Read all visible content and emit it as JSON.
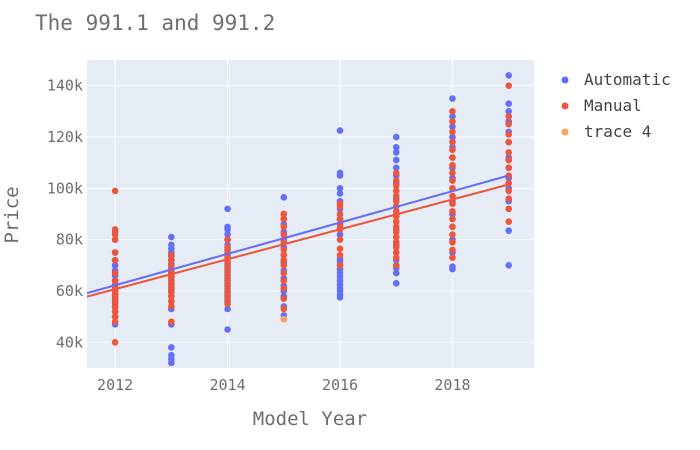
{
  "chart_data": {
    "type": "scatter",
    "title": "The 991.1 and 991.2",
    "xlabel": "Model Year",
    "ylabel": "Price",
    "xlim": [
      2011.5,
      2019.45
    ],
    "ylim": [
      30000,
      150000
    ],
    "x_ticks": [
      2012,
      2014,
      2016,
      2018
    ],
    "x_tick_labels": [
      "2012",
      "2014",
      "2016",
      "2018"
    ],
    "y_ticks": [
      40000,
      60000,
      80000,
      100000,
      120000,
      140000
    ],
    "y_tick_labels": [
      "40k",
      "60k",
      "80k",
      "100k",
      "120k",
      "140k"
    ],
    "grid": true,
    "legend_position": "top-right",
    "series": [
      {
        "name": "Automatic",
        "color": "#636efa",
        "mode": "markers",
        "points": [
          [
            2012,
            47000
          ],
          [
            2012,
            50000
          ],
          [
            2012,
            52000
          ],
          [
            2012,
            54000
          ],
          [
            2012,
            55500
          ],
          [
            2012,
            57000
          ],
          [
            2012,
            58500
          ],
          [
            2012,
            60000
          ],
          [
            2012,
            61000
          ],
          [
            2012,
            62500
          ],
          [
            2012,
            64000
          ],
          [
            2012,
            66000
          ],
          [
            2012,
            68000
          ],
          [
            2012,
            70000
          ],
          [
            2012,
            72000
          ],
          [
            2012,
            75000
          ],
          [
            2012,
            80000
          ],
          [
            2012,
            83000
          ],
          [
            2013,
            32000
          ],
          [
            2013,
            33500
          ],
          [
            2013,
            35000
          ],
          [
            2013,
            38000
          ],
          [
            2013,
            47000
          ],
          [
            2013,
            53000
          ],
          [
            2013,
            56000
          ],
          [
            2013,
            58000
          ],
          [
            2013,
            60000
          ],
          [
            2013,
            61500
          ],
          [
            2013,
            63000
          ],
          [
            2013,
            64500
          ],
          [
            2013,
            66000
          ],
          [
            2013,
            67500
          ],
          [
            2013,
            69000
          ],
          [
            2013,
            70500
          ],
          [
            2013,
            72000
          ],
          [
            2013,
            73500
          ],
          [
            2013,
            75000
          ],
          [
            2013,
            76500
          ],
          [
            2013,
            78000
          ],
          [
            2013,
            81000
          ],
          [
            2014,
            45000
          ],
          [
            2014,
            53000
          ],
          [
            2014,
            56000
          ],
          [
            2014,
            58000
          ],
          [
            2014,
            60000
          ],
          [
            2014,
            62000
          ],
          [
            2014,
            64000
          ],
          [
            2014,
            66000
          ],
          [
            2014,
            68000
          ],
          [
            2014,
            70000
          ],
          [
            2014,
            72000
          ],
          [
            2014,
            74000
          ],
          [
            2014,
            76000
          ],
          [
            2014,
            78000
          ],
          [
            2014,
            80000
          ],
          [
            2014,
            82000
          ],
          [
            2014,
            84000
          ],
          [
            2014,
            85000
          ],
          [
            2014,
            92000
          ],
          [
            2015,
            50500
          ],
          [
            2015,
            54000
          ],
          [
            2015,
            58000
          ],
          [
            2015,
            60000
          ],
          [
            2015,
            62000
          ],
          [
            2015,
            65000
          ],
          [
            2015,
            68000
          ],
          [
            2015,
            71000
          ],
          [
            2015,
            74000
          ],
          [
            2015,
            77000
          ],
          [
            2015,
            80000
          ],
          [
            2015,
            83000
          ],
          [
            2015,
            86000
          ],
          [
            2015,
            88000
          ],
          [
            2015,
            90000
          ],
          [
            2015,
            96500
          ],
          [
            2016,
            57500
          ],
          [
            2016,
            58500
          ],
          [
            2016,
            60000
          ],
          [
            2016,
            61000
          ],
          [
            2016,
            62500
          ],
          [
            2016,
            64000
          ],
          [
            2016,
            65500
          ],
          [
            2016,
            67000
          ],
          [
            2016,
            68500
          ],
          [
            2016,
            70000
          ],
          [
            2016,
            71500
          ],
          [
            2016,
            72500
          ],
          [
            2016,
            82000
          ],
          [
            2016,
            85000
          ],
          [
            2016,
            88000
          ],
          [
            2016,
            92000
          ],
          [
            2016,
            95000
          ],
          [
            2016,
            98000
          ],
          [
            2016,
            100000
          ],
          [
            2016,
            105000
          ],
          [
            2016,
            106000
          ],
          [
            2016,
            122500
          ],
          [
            2017,
            63000
          ],
          [
            2017,
            67000
          ],
          [
            2017,
            69000
          ],
          [
            2017,
            72000
          ],
          [
            2017,
            75000
          ],
          [
            2017,
            78000
          ],
          [
            2017,
            81000
          ],
          [
            2017,
            84000
          ],
          [
            2017,
            87000
          ],
          [
            2017,
            90000
          ],
          [
            2017,
            93000
          ],
          [
            2017,
            96000
          ],
          [
            2017,
            99000
          ],
          [
            2017,
            102000
          ],
          [
            2017,
            105000
          ],
          [
            2017,
            108000
          ],
          [
            2017,
            111000
          ],
          [
            2017,
            114000
          ],
          [
            2017,
            116000
          ],
          [
            2017,
            120000
          ],
          [
            2018,
            68500
          ],
          [
            2018,
            69500
          ],
          [
            2018,
            75000
          ],
          [
            2018,
            80000
          ],
          [
            2018,
            85000
          ],
          [
            2018,
            90000
          ],
          [
            2018,
            95000
          ],
          [
            2018,
            100000
          ],
          [
            2018,
            104000
          ],
          [
            2018,
            108000
          ],
          [
            2018,
            112000
          ],
          [
            2018,
            116000
          ],
          [
            2018,
            120000
          ],
          [
            2018,
            124000
          ],
          [
            2018,
            128000
          ],
          [
            2018,
            135000
          ],
          [
            2019,
            70000
          ],
          [
            2019,
            83500
          ],
          [
            2019,
            95000
          ],
          [
            2019,
            100000
          ],
          [
            2019,
            104000
          ],
          [
            2019,
            108000
          ],
          [
            2019,
            112000
          ],
          [
            2019,
            118000
          ],
          [
            2019,
            122000
          ],
          [
            2019,
            126000
          ],
          [
            2019,
            130000
          ],
          [
            2019,
            133000
          ],
          [
            2019,
            144000
          ]
        ],
        "trendline": [
          [
            2011.5,
            59200
          ],
          [
            2019,
            105000
          ]
        ]
      },
      {
        "name": "Manual",
        "color": "#ef553b",
        "mode": "markers",
        "points": [
          [
            2012,
            40000
          ],
          [
            2012,
            48000
          ],
          [
            2012,
            50000
          ],
          [
            2012,
            52000
          ],
          [
            2012,
            53500
          ],
          [
            2012,
            55000
          ],
          [
            2012,
            56500
          ],
          [
            2012,
            58000
          ],
          [
            2012,
            59000
          ],
          [
            2012,
            60500
          ],
          [
            2012,
            62000
          ],
          [
            2012,
            64000
          ],
          [
            2012,
            67000
          ],
          [
            2012,
            72000
          ],
          [
            2012,
            75000
          ],
          [
            2012,
            80000
          ],
          [
            2012,
            82000
          ],
          [
            2012,
            84000
          ],
          [
            2012,
            99000
          ],
          [
            2013,
            48000
          ],
          [
            2013,
            54000
          ],
          [
            2013,
            56000
          ],
          [
            2013,
            58000
          ],
          [
            2013,
            59500
          ],
          [
            2013,
            61000
          ],
          [
            2013,
            62500
          ],
          [
            2013,
            64000
          ],
          [
            2013,
            65500
          ],
          [
            2013,
            67000
          ],
          [
            2013,
            68500
          ],
          [
            2013,
            70000
          ],
          [
            2013,
            72000
          ],
          [
            2013,
            74000
          ],
          [
            2014,
            55000
          ],
          [
            2014,
            57000
          ],
          [
            2014,
            59000
          ],
          [
            2014,
            61000
          ],
          [
            2014,
            63000
          ],
          [
            2014,
            65000
          ],
          [
            2014,
            67000
          ],
          [
            2014,
            69000
          ],
          [
            2014,
            71000
          ],
          [
            2014,
            73000
          ],
          [
            2014,
            75000
          ],
          [
            2014,
            77000
          ],
          [
            2014,
            80000
          ],
          [
            2015,
            53000
          ],
          [
            2015,
            57000
          ],
          [
            2015,
            61000
          ],
          [
            2015,
            64000
          ],
          [
            2015,
            67000
          ],
          [
            2015,
            70000
          ],
          [
            2015,
            72000
          ],
          [
            2015,
            74000
          ],
          [
            2015,
            76000
          ],
          [
            2015,
            79000
          ],
          [
            2015,
            82000
          ],
          [
            2015,
            85000
          ],
          [
            2015,
            88000
          ],
          [
            2015,
            90000
          ],
          [
            2016,
            70000
          ],
          [
            2016,
            74000
          ],
          [
            2016,
            76500
          ],
          [
            2016,
            80000
          ],
          [
            2016,
            84000
          ],
          [
            2016,
            86000
          ],
          [
            2016,
            88000
          ],
          [
            2016,
            90000
          ],
          [
            2016,
            93000
          ],
          [
            2016,
            94000
          ],
          [
            2017,
            70000
          ],
          [
            2017,
            73000
          ],
          [
            2017,
            75000
          ],
          [
            2017,
            77000
          ],
          [
            2017,
            79000
          ],
          [
            2017,
            81000
          ],
          [
            2017,
            83000
          ],
          [
            2017,
            85000
          ],
          [
            2017,
            87000
          ],
          [
            2017,
            89000
          ],
          [
            2017,
            91000
          ],
          [
            2017,
            93000
          ],
          [
            2017,
            95000
          ],
          [
            2017,
            97000
          ],
          [
            2017,
            99000
          ],
          [
            2017,
            101000
          ],
          [
            2017,
            103000
          ],
          [
            2017,
            106000
          ],
          [
            2018,
            73000
          ],
          [
            2018,
            76000
          ],
          [
            2018,
            79000
          ],
          [
            2018,
            82000
          ],
          [
            2018,
            85000
          ],
          [
            2018,
            88000
          ],
          [
            2018,
            91000
          ],
          [
            2018,
            94000
          ],
          [
            2018,
            97000
          ],
          [
            2018,
            100000
          ],
          [
            2018,
            103000
          ],
          [
            2018,
            106000
          ],
          [
            2018,
            109000
          ],
          [
            2018,
            112000
          ],
          [
            2018,
            115000
          ],
          [
            2018,
            118000
          ],
          [
            2018,
            122000
          ],
          [
            2018,
            126000
          ],
          [
            2018,
            130000
          ],
          [
            2019,
            87000
          ],
          [
            2019,
            92000
          ],
          [
            2019,
            96000
          ],
          [
            2019,
            99000
          ],
          [
            2019,
            102000
          ],
          [
            2019,
            105000
          ],
          [
            2019,
            108000
          ],
          [
            2019,
            111000
          ],
          [
            2019,
            114000
          ],
          [
            2019,
            118000
          ],
          [
            2019,
            121000
          ],
          [
            2019,
            125000
          ],
          [
            2019,
            128000
          ],
          [
            2019,
            140000
          ]
        ],
        "trendline": [
          [
            2011.5,
            57800
          ],
          [
            2019,
            101500
          ]
        ]
      },
      {
        "name": "trace 4",
        "color": "#ffa15a",
        "mode": "markers",
        "points": [
          [
            2015,
            49000
          ]
        ]
      }
    ]
  }
}
